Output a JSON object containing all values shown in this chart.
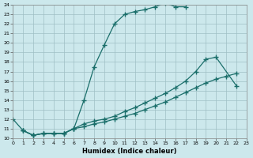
{
  "title": "",
  "xlabel": "Humidex (Indice chaleur)",
  "bg_color": "#cce8ec",
  "grid_color": "#9fbfc4",
  "line_color": "#1a6e6a",
  "xlim": [
    0,
    23
  ],
  "ylim": [
    10,
    24
  ],
  "xticks": [
    0,
    1,
    2,
    3,
    4,
    5,
    6,
    7,
    8,
    9,
    10,
    11,
    12,
    13,
    14,
    15,
    16,
    17,
    18,
    19,
    20,
    21,
    22,
    23
  ],
  "yticks": [
    10,
    11,
    12,
    13,
    14,
    15,
    16,
    17,
    18,
    19,
    20,
    21,
    22,
    23,
    24
  ],
  "curve1_x": [
    0,
    1,
    2,
    3,
    4,
    5,
    6,
    7,
    8,
    9,
    10,
    11,
    12,
    13,
    14,
    15,
    16,
    17
  ],
  "curve1_y": [
    12,
    10.8,
    10.3,
    10.5,
    10.5,
    10.5,
    11.0,
    14.0,
    17.5,
    19.8,
    22.0,
    23.0,
    23.3,
    23.5,
    23.8,
    24.2,
    23.8,
    23.8
  ],
  "curve2_x": [
    1,
    2,
    3,
    4,
    5,
    6,
    7,
    8,
    9,
    10,
    11,
    12,
    13,
    14,
    15,
    16,
    17,
    18,
    19,
    20,
    22
  ],
  "curve2_y": [
    10.8,
    10.3,
    10.5,
    10.5,
    10.5,
    11.0,
    11.5,
    11.8,
    12.0,
    12.3,
    12.8,
    13.2,
    13.7,
    14.2,
    14.7,
    15.3,
    16.0,
    17.0,
    18.3,
    18.5,
    15.5
  ],
  "curve3_x": [
    1,
    2,
    3,
    4,
    5,
    6,
    7,
    8,
    9,
    10,
    11,
    12,
    13,
    14,
    15,
    16,
    17,
    18,
    19,
    20,
    21,
    22
  ],
  "curve3_y": [
    10.8,
    10.3,
    10.5,
    10.5,
    10.5,
    11.0,
    11.2,
    11.5,
    11.7,
    12.0,
    12.3,
    12.6,
    13.0,
    13.4,
    13.8,
    14.3,
    14.8,
    15.3,
    15.8,
    16.2,
    16.5,
    16.8
  ]
}
